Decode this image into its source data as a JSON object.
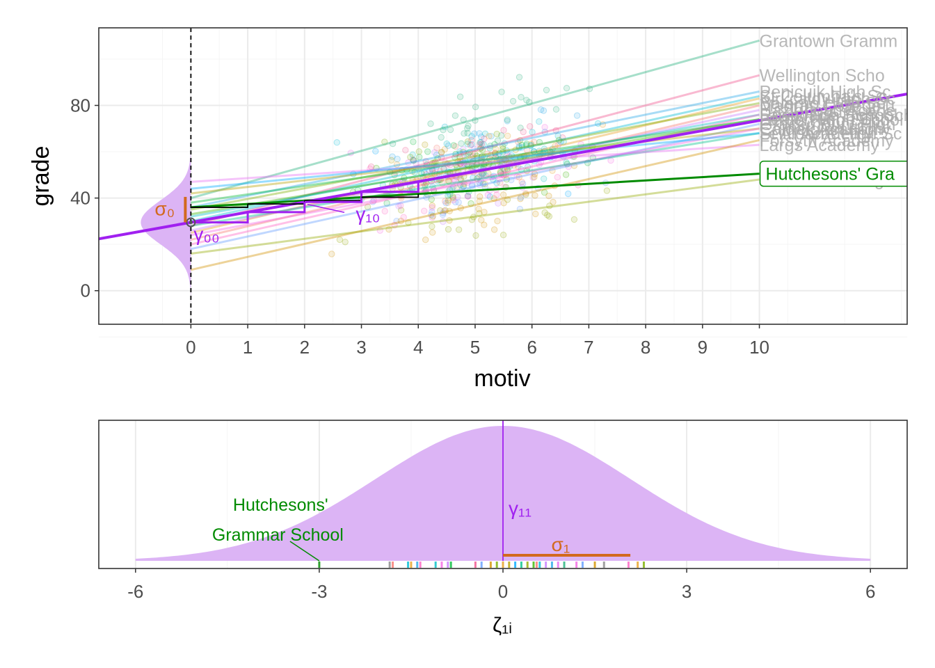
{
  "colors": {
    "panel_border": "#333333",
    "grid_major": "#ebebeb",
    "grid_minor": "#f5f5f5",
    "density_fill": "#dcb4f5",
    "fixed_line": "#a020f0",
    "highlight": "#008b00",
    "sigma": "#d2691e",
    "school_label": "#aaaaaa",
    "axis_text": "#4d4d4d"
  },
  "chart_data": [
    {
      "type": "scatter",
      "title": "",
      "xlabel": "motiv",
      "ylabel": "grade",
      "xlim": [
        -1.62,
        12.6
      ],
      "ylim": [
        -14.5,
        113.5
      ],
      "x_ticks": [
        0,
        1,
        2,
        3,
        4,
        5,
        6,
        7,
        8,
        9,
        10
      ],
      "x_tick_labels": [
        "0",
        "1",
        "2",
        "3",
        "4",
        "5",
        "6",
        "7",
        "8",
        "9",
        "10"
      ],
      "y_ticks": [
        0,
        40,
        80
      ],
      "y_tick_labels": [
        "0",
        "40",
        "80"
      ],
      "fixed_effect": {
        "intercept": 29.5,
        "slope": 4.4
      },
      "intercept_variance_density": {
        "mean": 29.5,
        "sd": 9.5
      },
      "annotations": {
        "sigma0": "σ₀",
        "gamma00": "γ₀₀",
        "gamma10": "γ₁₀"
      },
      "highlighted_school": {
        "name": "Hutchesons' Grammar School",
        "label": "Hutchesons' Gra",
        "intercept": 36,
        "slope": 1.45
      },
      "school_lines": [
        {
          "name": "Grantown Grammar School",
          "label": "Grantown Gramm",
          "intercept": 40,
          "slope": 6.8,
          "color": "#20b07a"
        },
        {
          "name": "Wellington School",
          "label": "Wellington Scho",
          "intercept": 28,
          "slope": 6.5,
          "color": "#f0508c"
        },
        {
          "name": "Penicuik High School",
          "label": "Penicuik High Sc",
          "intercept": 36,
          "slope": 5.0,
          "color": "#28a8e8"
        },
        {
          "name": "St Columba's School",
          "label": "St Columba's Sc",
          "intercept": 30,
          "slope": 5.4,
          "color": "#00bcd4"
        },
        {
          "name": "Kirkcaldy High School",
          "label": "Kirkcaldy High Sc",
          "intercept": 25,
          "slope": 5.8,
          "color": "#e8a020"
        },
        {
          "name": "Balerno High School",
          "label": "Balerno High Sch",
          "intercept": 35,
          "slope": 4.6,
          "color": "#7cae00"
        },
        {
          "name": "Madras College",
          "label": "Madras College",
          "intercept": 22,
          "slope": 5.8,
          "color": "#f8766d"
        },
        {
          "name": "Hazlehead Academy",
          "label": "Hazlehead Acade",
          "intercept": 26,
          "slope": 5.2,
          "color": "#c77cff"
        },
        {
          "name": "Ross High School",
          "label": "Ross High School",
          "intercept": 32,
          "slope": 4.4,
          "color": "#00bfc4"
        },
        {
          "name": "Lasswade High School",
          "label": "Lasswade High Sch",
          "intercept": 20,
          "slope": 5.6,
          "color": "#ff61c3"
        },
        {
          "name": "Larbert High School",
          "label": "Larbert High Sch",
          "intercept": 38,
          "slope": 3.6,
          "color": "#00ba38"
        },
        {
          "name": "Gracemount High School",
          "label": "Gracemount High",
          "intercept": 18,
          "slope": 5.4,
          "color": "#619cff"
        },
        {
          "name": "Calderglen High School",
          "label": "Calderglen High",
          "intercept": 42,
          "slope": 2.8,
          "color": "#b79f00"
        },
        {
          "name": "Carrick Academy",
          "label": "Carrick Academy",
          "intercept": 24,
          "slope": 4.6,
          "color": "#f564e3"
        },
        {
          "name": "St Aidan's High School",
          "label": "St Aidan's High Sc",
          "intercept": 28,
          "slope": 4.0,
          "color": "#00c08b"
        },
        {
          "name": "Largs Academy",
          "label": "Largs Academy",
          "intercept": 47,
          "slope": 1.6,
          "color": "#e76bf3"
        },
        {
          "name": "Forsyth Academy",
          "label": "Forsyth Academy",
          "intercept": 9,
          "slope": 5.6,
          "color": "#d39200"
        },
        {
          "name": "Dunfermline High School",
          "label": "Dunfermline High",
          "intercept": 16,
          "slope": 3.2,
          "color": "#93aa00"
        },
        {
          "name": "Beath High School",
          "label": "Beath High School",
          "intercept": 33,
          "slope": 4.1,
          "color": "#39b600"
        },
        {
          "name": "Leith Academy",
          "label": "Leith Academy",
          "intercept": 44,
          "slope": 2.4,
          "color": "#00a9ff"
        }
      ]
    },
    {
      "type": "area",
      "title": "",
      "xlabel": "ζ₁ᵢ",
      "ylabel": "",
      "xlim": [
        -6.6,
        6.6
      ],
      "x_ticks": [
        -6,
        -3,
        0,
        3,
        6
      ],
      "x_tick_labels": [
        "-6",
        "-3",
        "0",
        "3",
        "6"
      ],
      "density": {
        "mean": 0,
        "sd": 2.08,
        "range": [
          -6,
          6
        ]
      },
      "annotations": {
        "gamma11": "γ₁₁",
        "sigma1": "σ₁",
        "sigma1_value": 2.08,
        "highlight_label_line1": "Hutchesons'",
        "highlight_label_line2": "Grammar School",
        "highlight_value": -3.0
      },
      "rug_values": [
        -3.0,
        -1.85,
        -1.8,
        -1.55,
        -1.5,
        -1.4,
        -1.35,
        -1.1,
        -1.0,
        -0.9,
        -0.85,
        -0.45,
        -0.35,
        -0.2,
        -0.1,
        0.0,
        0.1,
        0.2,
        0.3,
        0.4,
        0.5,
        0.55,
        0.6,
        0.7,
        0.8,
        0.9,
        1.0,
        1.2,
        1.3,
        1.5,
        1.65,
        2.05,
        2.2,
        2.3
      ],
      "rug_colors": [
        "#008b00",
        "#888888",
        "#f8766d",
        "#00bcd4",
        "#e8a020",
        "#28a8e8",
        "#ff61c3",
        "#00bfc4",
        "#f564e3",
        "#c77cff",
        "#00ba38",
        "#f0508c",
        "#619cff",
        "#d39200",
        "#7cae00",
        "#e8a020",
        "#b79f00",
        "#00a9ff",
        "#00c08b",
        "#93aa00",
        "#39b600",
        "#f8766d",
        "#00bcd4",
        "#c77cff",
        "#28a8e8",
        "#e76bf3",
        "#20b07a",
        "#f564e3",
        "#619cff",
        "#d39200",
        "#888888",
        "#ff61c3",
        "#e8a020",
        "#7cae00"
      ]
    }
  ]
}
